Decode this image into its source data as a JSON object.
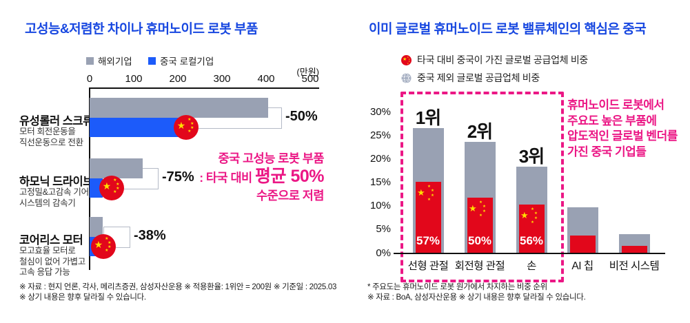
{
  "colors": {
    "accent_blue": "#1747E0",
    "bar_gray": "#99A1B3",
    "bar_blue": "#1C5BFA",
    "red": "#E2071B",
    "pink": "#EB1785",
    "star_yellow": "#FFDE00",
    "bracket_border": "#B4BAC6"
  },
  "left_panel": {
    "title": "고성능&저렴한 차이나 휴머노이드 로봇 부품",
    "legend": [
      {
        "label": "해외기업",
        "color": "#99A1B3"
      },
      {
        "label": "중국 로컬기업",
        "color": "#1C5BFA"
      }
    ],
    "unit_label": "(만원)",
    "axis_ticks": [
      "0",
      "100",
      "200",
      "300",
      "400",
      "500"
    ],
    "chart_data": {
      "type": "bar",
      "orientation": "horizontal",
      "title": "고성능&저렴한 차이나 휴머노이드 로봇 부품",
      "xlabel": "(만원)",
      "xlim": [
        0,
        500
      ],
      "grid": false,
      "series_names": [
        "해외기업",
        "중국 로컬기업"
      ],
      "items": [
        {
          "name": "유성롤러 스크류",
          "desc": [
            "모터 회전운동을",
            "직선운동으로 전환"
          ],
          "overseas": 405,
          "china": 205,
          "discount": "-50%"
        },
        {
          "name": "하모닉 드라이브",
          "desc": [
            "고정밀&고감속 기어",
            "시스템의 감속기"
          ],
          "overseas": 120,
          "china": 30,
          "discount": "-75%"
        },
        {
          "name": "코어리스 모터",
          "desc": [
            "모고효율 모터로",
            "철심이 없어 가볍고",
            "고속 응답 가능"
          ],
          "overseas": 29,
          "china": 18,
          "discount": "-38%"
        }
      ]
    },
    "annotation": {
      "line1": "중국 고성능 로봇 부품",
      "line2_prefix": ": 타국 대비 ",
      "line2_em": "평균 50%",
      "line3": "수준으로 저렴"
    },
    "footnote1": "※ 자료 : 현지 언론, 각사, 메리츠증권, 삼성자산운용 ※ 적용환율: 1위안 = 200원 ※ 기준일 : 2025.03",
    "footnote2": "※ 상기 내용은 향후 달라질 수 있습니다."
  },
  "right_panel": {
    "title": "이미 글로벌 휴머노이드 로봇 밸류체인의 핵심은 중국",
    "legend": [
      {
        "icon": "china-flag-icon",
        "label": "타국 대비 중국이 가진 글로벌 공급업체 비중"
      },
      {
        "icon": "globe-icon",
        "label": "중국 제외 글로벌 공급업체 비중"
      }
    ],
    "chart_data": {
      "type": "bar",
      "title": "이미 글로벌 휴머노이드 로봇 밸류체인의 핵심은 중국",
      "ylim": [
        0,
        30
      ],
      "y_ticks": [
        "30%",
        "25%",
        "20%",
        "15%",
        "10%",
        "5%",
        "0%"
      ],
      "grid": false,
      "categories": [
        "선형 관절",
        "회전형 관절",
        "손",
        "AI 칩",
        "비전 시스템"
      ],
      "series": [
        {
          "name": "중국 제외 글로벌 공급업체 비중",
          "values": [
            26.6,
            23.6,
            18.4,
            9.7,
            4.0
          ]
        },
        {
          "name": "타국 대비 중국이 가진 글로벌 공급업체 비중",
          "values": [
            15.1,
            11.8,
            10.3,
            3.8,
            1.6
          ]
        }
      ],
      "china_share_labels": [
        "57%",
        "50%",
        "56%",
        "",
        ""
      ],
      "ranks": [
        "1위",
        "2위",
        "3위",
        "",
        ""
      ],
      "highlighted_categories": 3
    },
    "annotation": [
      "휴머노이드 로봇에서",
      "주요도 높은 부품에",
      "압도적인 글로벌 벤더를",
      "가진 중국 기업들"
    ],
    "footnote1": "* 주요도는 휴머노이드 로봇 원가에서 차지하는 비중 순위",
    "footnote2": "※ 자료 : BoA, 삼성자산운용 ※ 상기 내용은 향후 달라질 수 있습니다."
  }
}
